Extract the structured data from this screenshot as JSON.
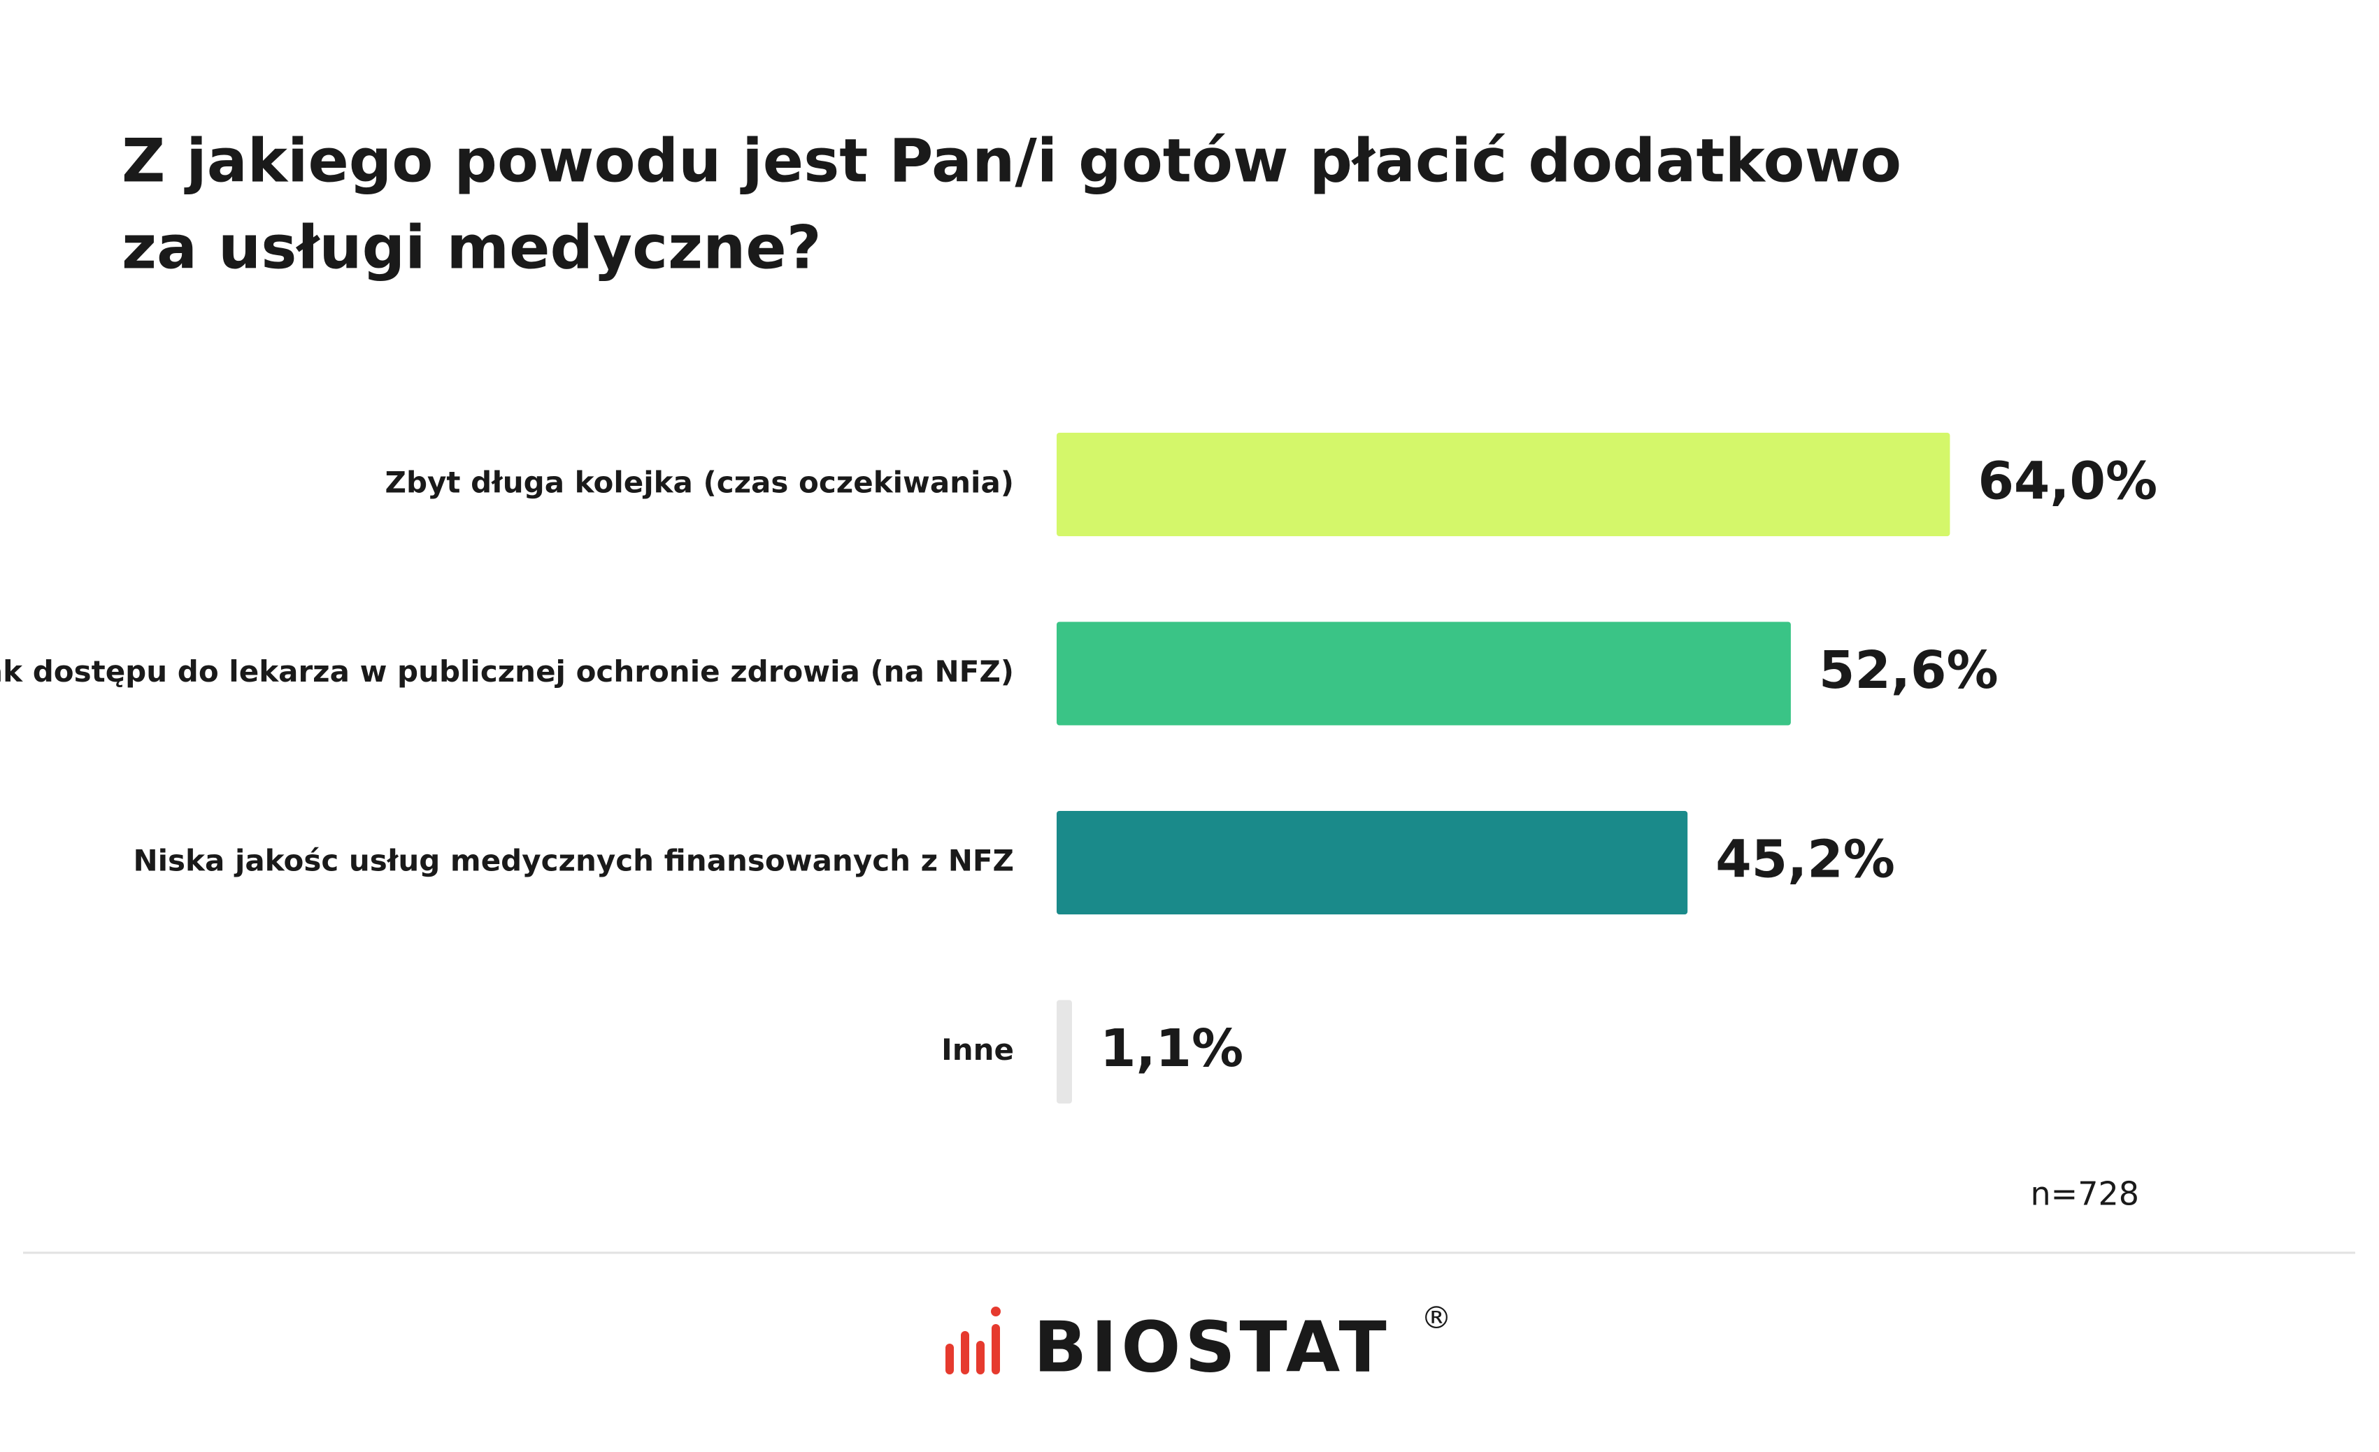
{
  "chart_data": {
    "type": "hbar",
    "title": "Z jakiego powodu jest Pan/i gotów płacić dodatkowo",
    "title_line2": "za usługi medyczne?",
    "categories": [
      "Zbyt długa kolejka (czas oczekiwania)",
      "Brak dostępu do lekarza w publicznej ochronie zdrowia (na NFZ)",
      "Niska jakośc usług medycznych finansowanych z NFZ",
      "Inne"
    ],
    "values": [
      64.0,
      52.6,
      45.2,
      1.1
    ],
    "value_labels": [
      "64,0%",
      "52,6%",
      "45,2%",
      "1,1%"
    ],
    "colors": [
      "#d4f76a",
      "#3ac486",
      "#1a8a8a",
      "#e6e6e6"
    ],
    "note": "n=728"
  },
  "footer": {
    "logo": "BIOSTAT",
    "mark": "®"
  }
}
